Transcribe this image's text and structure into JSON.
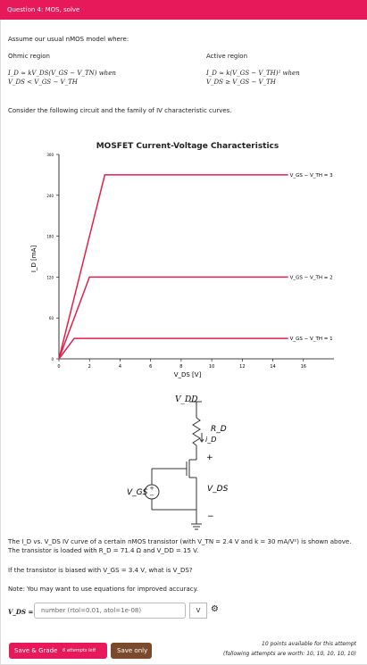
{
  "header": {
    "title": "Question 4: MOS, solve"
  },
  "intro": "Assume our usual nMOS model where:",
  "ohmic": {
    "title": "Ohmic region",
    "line1": "I_D ≈ kV_DS(V_GS − V_TN) when",
    "line2": "V_DS < V_GS − V_TH"
  },
  "active": {
    "title": "Active region",
    "line1": "I_D ≈ k(V_GS − V_TH)² when",
    "line2": "V_DS ≥ V_GS − V_TH"
  },
  "consider": "Consider the following circuit and the family of IV characteristic curves.",
  "chart": {
    "type": "line",
    "title": "MOSFET Current-Voltage Characteristics",
    "x_label": "V_DS [V]",
    "y_label": "I_D [mA]",
    "xlim": [
      0,
      18
    ],
    "xticks": [
      0,
      2,
      4,
      6,
      8,
      10,
      12,
      14,
      16
    ],
    "ylim": [
      0,
      300
    ],
    "yticks": [
      0,
      60,
      120,
      180,
      240,
      300
    ],
    "grid": false,
    "series": [
      {
        "name": "V_GS − V_TH = 3",
        "color": "#e0204a",
        "x": [
          0,
          3,
          15
        ],
        "values": [
          0,
          270,
          270
        ]
      },
      {
        "name": "V_GS − V_TH = 2",
        "color": "#e0204a",
        "x": [
          0,
          2,
          15
        ],
        "values": [
          0,
          120,
          120
        ]
      },
      {
        "name": "V_GS − V_TH = 1",
        "color": "#e0204a",
        "x": [
          0,
          1,
          15
        ],
        "values": [
          0,
          30,
          30
        ]
      }
    ]
  },
  "circuit": {
    "vdd": "V_DD",
    "rd": "R_D",
    "id": "i_D",
    "plus": "+",
    "vds": "V_DS",
    "minus": "−",
    "vgs": "V_GS"
  },
  "problem": "The I_D vs. V_DS IV curve of a certain nMOS transistor (with V_TN = 2.4 V and k = 30 mA/V²) is shown above. The transistor is loaded with R_D = 71.4 Ω and V_DD = 15 V.",
  "question": "If the transistor is biased with V_GS = 3.4 V, what is V_DS?",
  "note": "Note: You may want to use equations for improved accuracy.",
  "answer": {
    "label": "V_DS =",
    "placeholder": "number (rtol=0.01, atol=1e-08)",
    "unit": "V"
  },
  "footer": {
    "save_grade": "Save & Grade",
    "attempts": "6 attempts left",
    "save_only": "Save only",
    "points": "10 points available for this attempt",
    "following": "(following attempts are worth: 10, 10, 10, 10, 10)"
  }
}
